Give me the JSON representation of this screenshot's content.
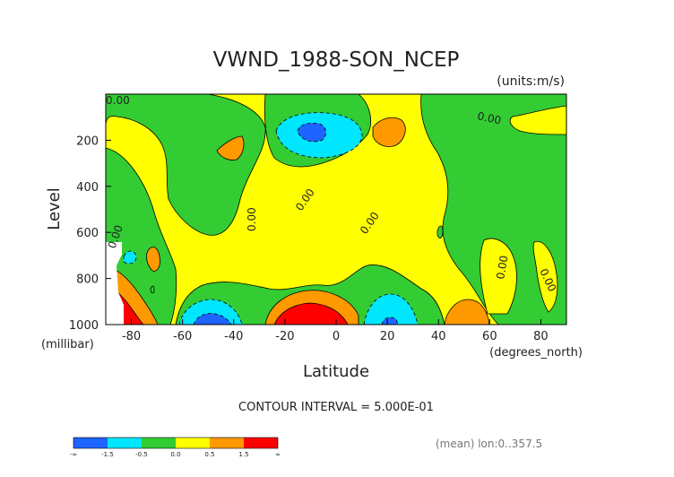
{
  "chart_data": {
    "type": "contour",
    "title": "VWND_1988-SON_NCEP",
    "units": "(units:m/s)",
    "xlabel": "Latitude",
    "xunits": "(degrees_north)",
    "ylabel": "Level",
    "yunits": "(millibar)",
    "xlim": [
      -90,
      90
    ],
    "ylim": [
      1000,
      0
    ],
    "x_ticks": [
      -80,
      -60,
      -40,
      -20,
      0,
      20,
      40,
      60,
      80
    ],
    "y_ticks": [
      200,
      400,
      600,
      800,
      1000
    ],
    "contour_interval": "CONTOUR INTERVAL = 5.000E-01",
    "mean_note": "(mean) lon:0..357.5",
    "contour_labels": [
      "0.00",
      "0.00",
      "0.00",
      "0.00",
      "0.00",
      "0.00",
      "0.00",
      "0.00"
    ],
    "colorbar": {
      "colors": [
        "#1e64ff",
        "#00e6ff",
        "#33cc33",
        "#ffff00",
        "#ff9900",
        "#ff0000"
      ],
      "labels": [
        "-∞",
        "-1.5",
        "-0.5",
        "0.0",
        "0.5",
        "1.5",
        "∞"
      ]
    },
    "features": [
      {
        "sign": "negative",
        "level": "-1.5",
        "lat": -14,
        "pressure": 180
      },
      {
        "sign": "negative",
        "level": "-1.5",
        "lat": -50,
        "pressure": 980
      },
      {
        "sign": "negative",
        "level": "-1.5",
        "lat": 20,
        "pressure": 980
      },
      {
        "sign": "positive",
        "level": "1.5",
        "lat": -12,
        "pressure": 950
      },
      {
        "sign": "positive",
        "level": "1.5",
        "lat": -85,
        "pressure": 920
      },
      {
        "sign": "positive",
        "level": "0.5",
        "lat": 52,
        "pressure": 940
      },
      {
        "sign": "positive",
        "level": "0.5",
        "lat": 20,
        "pressure": 150
      }
    ]
  }
}
